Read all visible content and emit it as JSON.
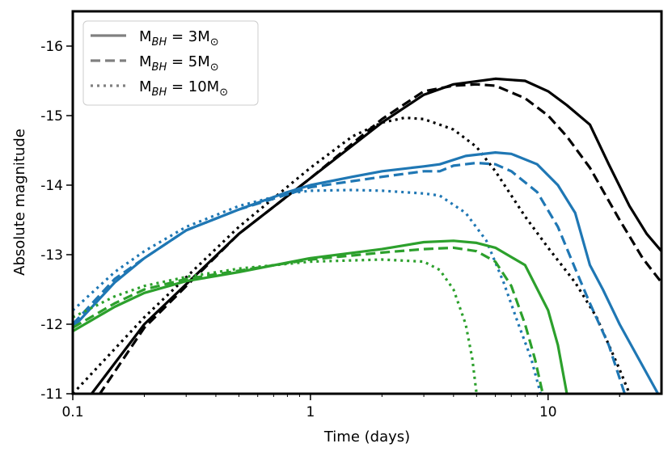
{
  "chart_data": {
    "type": "line",
    "title": "",
    "xlabel": "Time (days)",
    "ylabel": "Absolute magnitude",
    "xscale": "log",
    "xlim": [
      0.1,
      30
    ],
    "ylim": [
      -11,
      -16.5
    ],
    "yaxis_inverted": true,
    "grid": false,
    "legend_position": "top-left",
    "x_ticks": [
      {
        "value": 0.1,
        "label": "0.1"
      },
      {
        "value": 1,
        "label": "1"
      },
      {
        "value": 10,
        "label": "10"
      }
    ],
    "y_ticks": [
      {
        "value": -11,
        "label": "-11"
      },
      {
        "value": -12,
        "label": "-12"
      },
      {
        "value": -13,
        "label": "-13"
      },
      {
        "value": -14,
        "label": "-14"
      },
      {
        "value": -15,
        "label": "-15"
      },
      {
        "value": -16,
        "label": "-16"
      }
    ],
    "legend": [
      {
        "style": "solid",
        "label": "M",
        "sub": "BH",
        "value": " = 3M",
        "sun": "⊙"
      },
      {
        "style": "dashed",
        "label": "M",
        "sub": "BH",
        "value": " = 5M",
        "sun": "⊙"
      },
      {
        "style": "dotted",
        "label": "M",
        "sub": "BH",
        "value": " = 10M",
        "sun": "⊙"
      }
    ],
    "series": [
      {
        "color": "#000000",
        "style": "solid",
        "points": [
          [
            0.1,
            -10.7
          ],
          [
            0.12,
            -11.0
          ],
          [
            0.2,
            -12.0
          ],
          [
            0.5,
            -13.3
          ],
          [
            1.0,
            -14.1
          ],
          [
            2.0,
            -14.9
          ],
          [
            3.0,
            -15.3
          ],
          [
            4.0,
            -15.45
          ],
          [
            6.0,
            -15.53
          ],
          [
            8.0,
            -15.5
          ],
          [
            10.0,
            -15.35
          ],
          [
            12.0,
            -15.15
          ],
          [
            15.0,
            -14.87
          ],
          [
            18.0,
            -14.3
          ],
          [
            22.0,
            -13.7
          ],
          [
            26.0,
            -13.3
          ],
          [
            30.0,
            -13.05
          ]
        ]
      },
      {
        "color": "#000000",
        "style": "dashed",
        "points": [
          [
            0.1,
            -10.8
          ],
          [
            0.13,
            -11.0
          ],
          [
            0.2,
            -11.95
          ],
          [
            0.5,
            -13.3
          ],
          [
            1.0,
            -14.1
          ],
          [
            2.0,
            -14.95
          ],
          [
            3.0,
            -15.35
          ],
          [
            4.0,
            -15.43
          ],
          [
            5.0,
            -15.45
          ],
          [
            6.0,
            -15.43
          ],
          [
            8.0,
            -15.25
          ],
          [
            10.0,
            -15.0
          ],
          [
            12.0,
            -14.7
          ],
          [
            15.0,
            -14.25
          ],
          [
            20.0,
            -13.5
          ],
          [
            25.0,
            -12.95
          ],
          [
            30.0,
            -12.6
          ]
        ]
      },
      {
        "color": "#000000",
        "style": "dotted",
        "points": [
          [
            0.1,
            -11.0
          ],
          [
            0.2,
            -12.1
          ],
          [
            0.5,
            -13.4
          ],
          [
            1.0,
            -14.25
          ],
          [
            1.5,
            -14.7
          ],
          [
            2.0,
            -14.9
          ],
          [
            2.5,
            -14.97
          ],
          [
            3.0,
            -14.95
          ],
          [
            4.0,
            -14.8
          ],
          [
            5.0,
            -14.55
          ],
          [
            6.0,
            -14.2
          ],
          [
            8.0,
            -13.55
          ],
          [
            10.0,
            -13.1
          ],
          [
            13.0,
            -12.6
          ],
          [
            16.0,
            -12.1
          ],
          [
            20.0,
            -11.35
          ],
          [
            22.0,
            -11.0
          ]
        ]
      },
      {
        "color": "#1f77b4",
        "style": "solid",
        "points": [
          [
            0.1,
            -11.95
          ],
          [
            0.15,
            -12.6
          ],
          [
            0.2,
            -12.95
          ],
          [
            0.3,
            -13.35
          ],
          [
            0.5,
            -13.65
          ],
          [
            0.8,
            -13.9
          ],
          [
            1.0,
            -14.0
          ],
          [
            1.5,
            -14.12
          ],
          [
            2.0,
            -14.2
          ],
          [
            3.0,
            -14.27
          ],
          [
            3.5,
            -14.3
          ],
          [
            4.5,
            -14.42
          ],
          [
            6.0,
            -14.47
          ],
          [
            7.0,
            -14.45
          ],
          [
            9.0,
            -14.3
          ],
          [
            11.0,
            -14.0
          ],
          [
            13.0,
            -13.6
          ],
          [
            15.0,
            -12.85
          ],
          [
            17.0,
            -12.5
          ],
          [
            20.0,
            -12.0
          ],
          [
            25.0,
            -11.4
          ],
          [
            29.0,
            -11.0
          ]
        ]
      },
      {
        "color": "#1f77b4",
        "style": "dashed",
        "points": [
          [
            0.1,
            -12.0
          ],
          [
            0.15,
            -12.65
          ],
          [
            0.2,
            -12.95
          ],
          [
            0.3,
            -13.35
          ],
          [
            0.5,
            -13.65
          ],
          [
            1.0,
            -13.97
          ],
          [
            2.0,
            -14.12
          ],
          [
            3.0,
            -14.2
          ],
          [
            3.5,
            -14.2
          ],
          [
            4.0,
            -14.28
          ],
          [
            5.0,
            -14.32
          ],
          [
            6.0,
            -14.3
          ],
          [
            7.0,
            -14.2
          ],
          [
            9.0,
            -13.9
          ],
          [
            11.0,
            -13.4
          ],
          [
            13.0,
            -12.8
          ],
          [
            15.0,
            -12.3
          ],
          [
            18.0,
            -11.7
          ],
          [
            21.0,
            -11.0
          ]
        ]
      },
      {
        "color": "#1f77b4",
        "style": "dotted",
        "points": [
          [
            0.1,
            -12.2
          ],
          [
            0.15,
            -12.75
          ],
          [
            0.2,
            -13.05
          ],
          [
            0.3,
            -13.4
          ],
          [
            0.5,
            -13.7
          ],
          [
            0.8,
            -13.88
          ],
          [
            1.0,
            -13.92
          ],
          [
            1.5,
            -13.93
          ],
          [
            2.0,
            -13.92
          ],
          [
            3.0,
            -13.88
          ],
          [
            3.5,
            -13.85
          ],
          [
            4.5,
            -13.6
          ],
          [
            5.5,
            -13.2
          ],
          [
            6.5,
            -12.6
          ],
          [
            7.5,
            -12.0
          ],
          [
            8.5,
            -11.5
          ],
          [
            9.3,
            -11.0
          ]
        ]
      },
      {
        "color": "#2ca02c",
        "style": "solid",
        "points": [
          [
            0.1,
            -11.9
          ],
          [
            0.15,
            -12.25
          ],
          [
            0.2,
            -12.45
          ],
          [
            0.3,
            -12.62
          ],
          [
            0.5,
            -12.75
          ],
          [
            1.0,
            -12.95
          ],
          [
            2.0,
            -13.08
          ],
          [
            3.0,
            -13.18
          ],
          [
            4.0,
            -13.2
          ],
          [
            5.0,
            -13.17
          ],
          [
            6.0,
            -13.1
          ],
          [
            8.0,
            -12.85
          ],
          [
            10.0,
            -12.2
          ],
          [
            11.0,
            -11.7
          ],
          [
            12.0,
            -11.0
          ]
        ]
      },
      {
        "color": "#2ca02c",
        "style": "dashed",
        "points": [
          [
            0.1,
            -11.95
          ],
          [
            0.15,
            -12.3
          ],
          [
            0.2,
            -12.5
          ],
          [
            0.3,
            -12.65
          ],
          [
            0.5,
            -12.77
          ],
          [
            1.0,
            -12.93
          ],
          [
            2.0,
            -13.03
          ],
          [
            3.0,
            -13.08
          ],
          [
            4.0,
            -13.1
          ],
          [
            5.0,
            -13.05
          ],
          [
            6.0,
            -12.9
          ],
          [
            7.0,
            -12.55
          ],
          [
            8.0,
            -12.0
          ],
          [
            8.8,
            -11.5
          ],
          [
            9.5,
            -11.0
          ]
        ]
      },
      {
        "color": "#2ca02c",
        "style": "dotted",
        "points": [
          [
            0.1,
            -12.1
          ],
          [
            0.15,
            -12.4
          ],
          [
            0.2,
            -12.55
          ],
          [
            0.3,
            -12.68
          ],
          [
            0.5,
            -12.8
          ],
          [
            1.0,
            -12.9
          ],
          [
            2.0,
            -12.93
          ],
          [
            3.0,
            -12.9
          ],
          [
            3.5,
            -12.78
          ],
          [
            4.0,
            -12.5
          ],
          [
            4.5,
            -12.0
          ],
          [
            4.8,
            -11.5
          ],
          [
            5.0,
            -11.0
          ]
        ]
      }
    ]
  }
}
